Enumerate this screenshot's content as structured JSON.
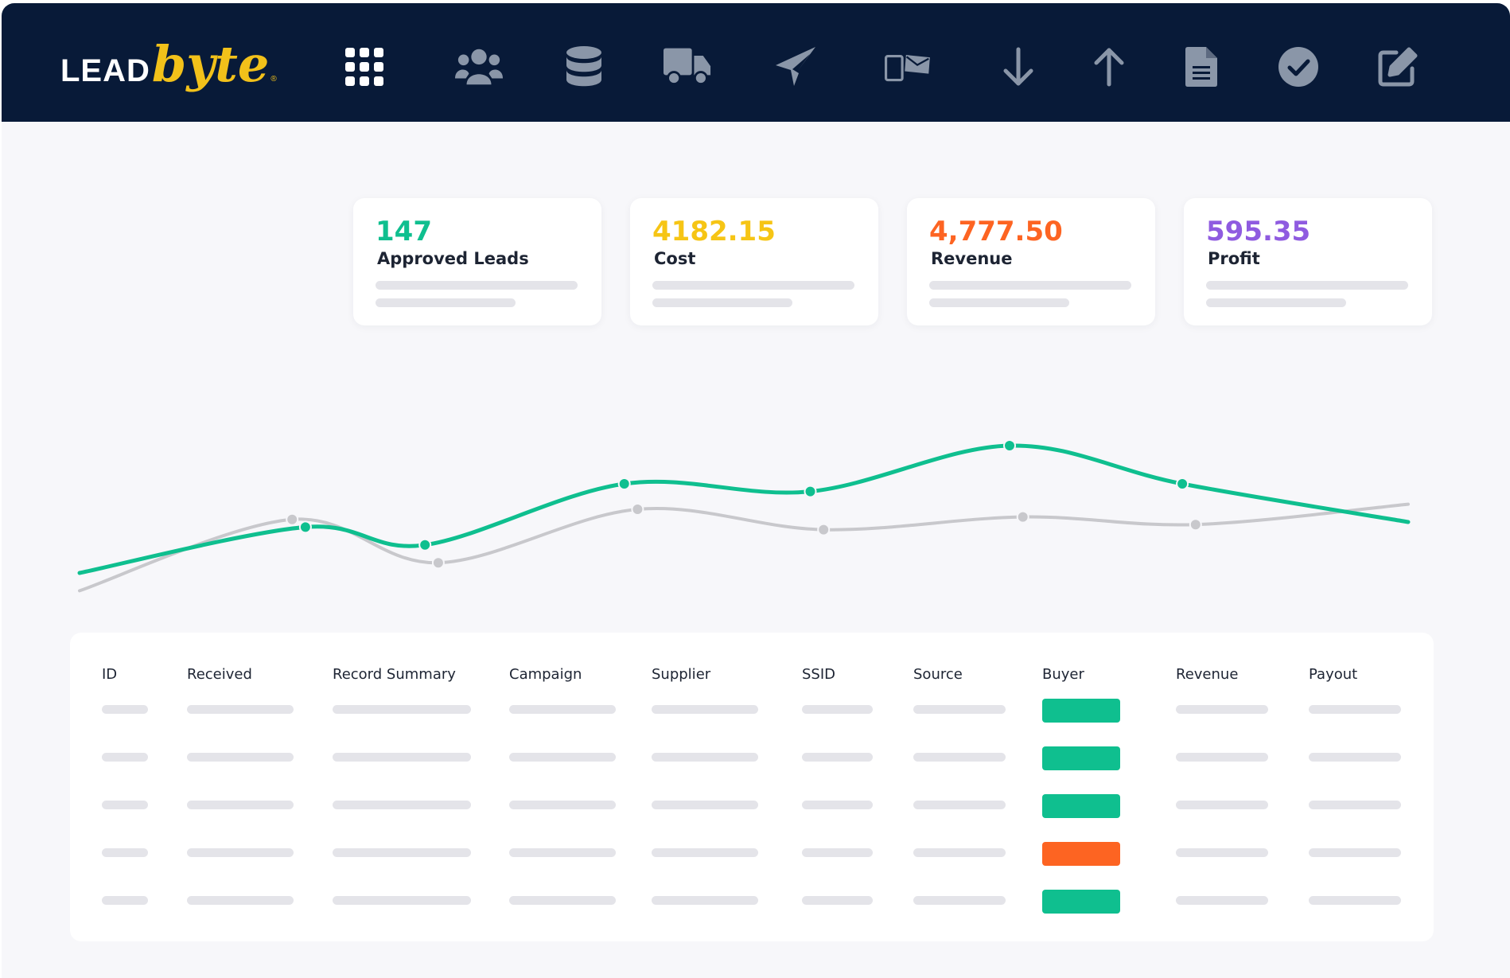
{
  "brand": {
    "lead": "LEAD",
    "byte": "byte",
    "reg": "®"
  },
  "nav": {
    "icons": [
      {
        "name": "apps-grid-icon"
      },
      {
        "name": "users-icon"
      },
      {
        "name": "database-icon"
      },
      {
        "name": "delivery-truck-icon"
      },
      {
        "name": "send-plane-icon"
      },
      {
        "name": "phone-email-icon"
      },
      {
        "name": "arrow-down-icon"
      },
      {
        "name": "arrow-up-icon"
      },
      {
        "name": "document-icon"
      },
      {
        "name": "check-circle-icon"
      },
      {
        "name": "edit-icon"
      }
    ],
    "colors": {
      "bar": "#081a38",
      "active": "#ffffff",
      "inactive": "#8a96a8"
    }
  },
  "stats": [
    {
      "value": "147",
      "label": "Approved Leads",
      "color": "#0fbf8f"
    },
    {
      "value": "4182.15",
      "label": "Cost",
      "color": "#f6c515"
    },
    {
      "value": "4,777.50",
      "label": "Revenue",
      "color": "#fd6422"
    },
    {
      "value": "595.35",
      "label": "Profit",
      "color": "#8f5be0"
    }
  ],
  "chart_data": {
    "type": "line",
    "title": "",
    "xlabel": "",
    "ylabel": "",
    "grid": false,
    "ylim": [
      0,
      1
    ],
    "series": [
      {
        "color": "#0fbf8f",
        "points": [
          [
            0.0,
            0.2
          ],
          [
            0.17,
            0.38
          ],
          [
            0.26,
            0.31
          ],
          [
            0.41,
            0.55
          ],
          [
            0.55,
            0.52
          ],
          [
            0.7,
            0.7
          ],
          [
            0.83,
            0.55
          ],
          [
            1.0,
            0.4
          ]
        ]
      },
      {
        "color": "#c8c8cc",
        "points": [
          [
            0.0,
            0.13
          ],
          [
            0.16,
            0.41
          ],
          [
            0.27,
            0.24
          ],
          [
            0.42,
            0.45
          ],
          [
            0.56,
            0.37
          ],
          [
            0.71,
            0.42
          ],
          [
            0.84,
            0.39
          ],
          [
            1.0,
            0.47
          ]
        ]
      }
    ]
  },
  "table": {
    "columns": [
      "ID",
      "Received",
      "Record Summary",
      "Campaign",
      "Supplier",
      "SSID",
      "Source",
      "Buyer",
      "Revenue",
      "Payout"
    ],
    "row_status": [
      "#0fbf8f",
      "#0fbf8f",
      "#0fbf8f",
      "#fd6422",
      "#0fbf8f"
    ]
  }
}
